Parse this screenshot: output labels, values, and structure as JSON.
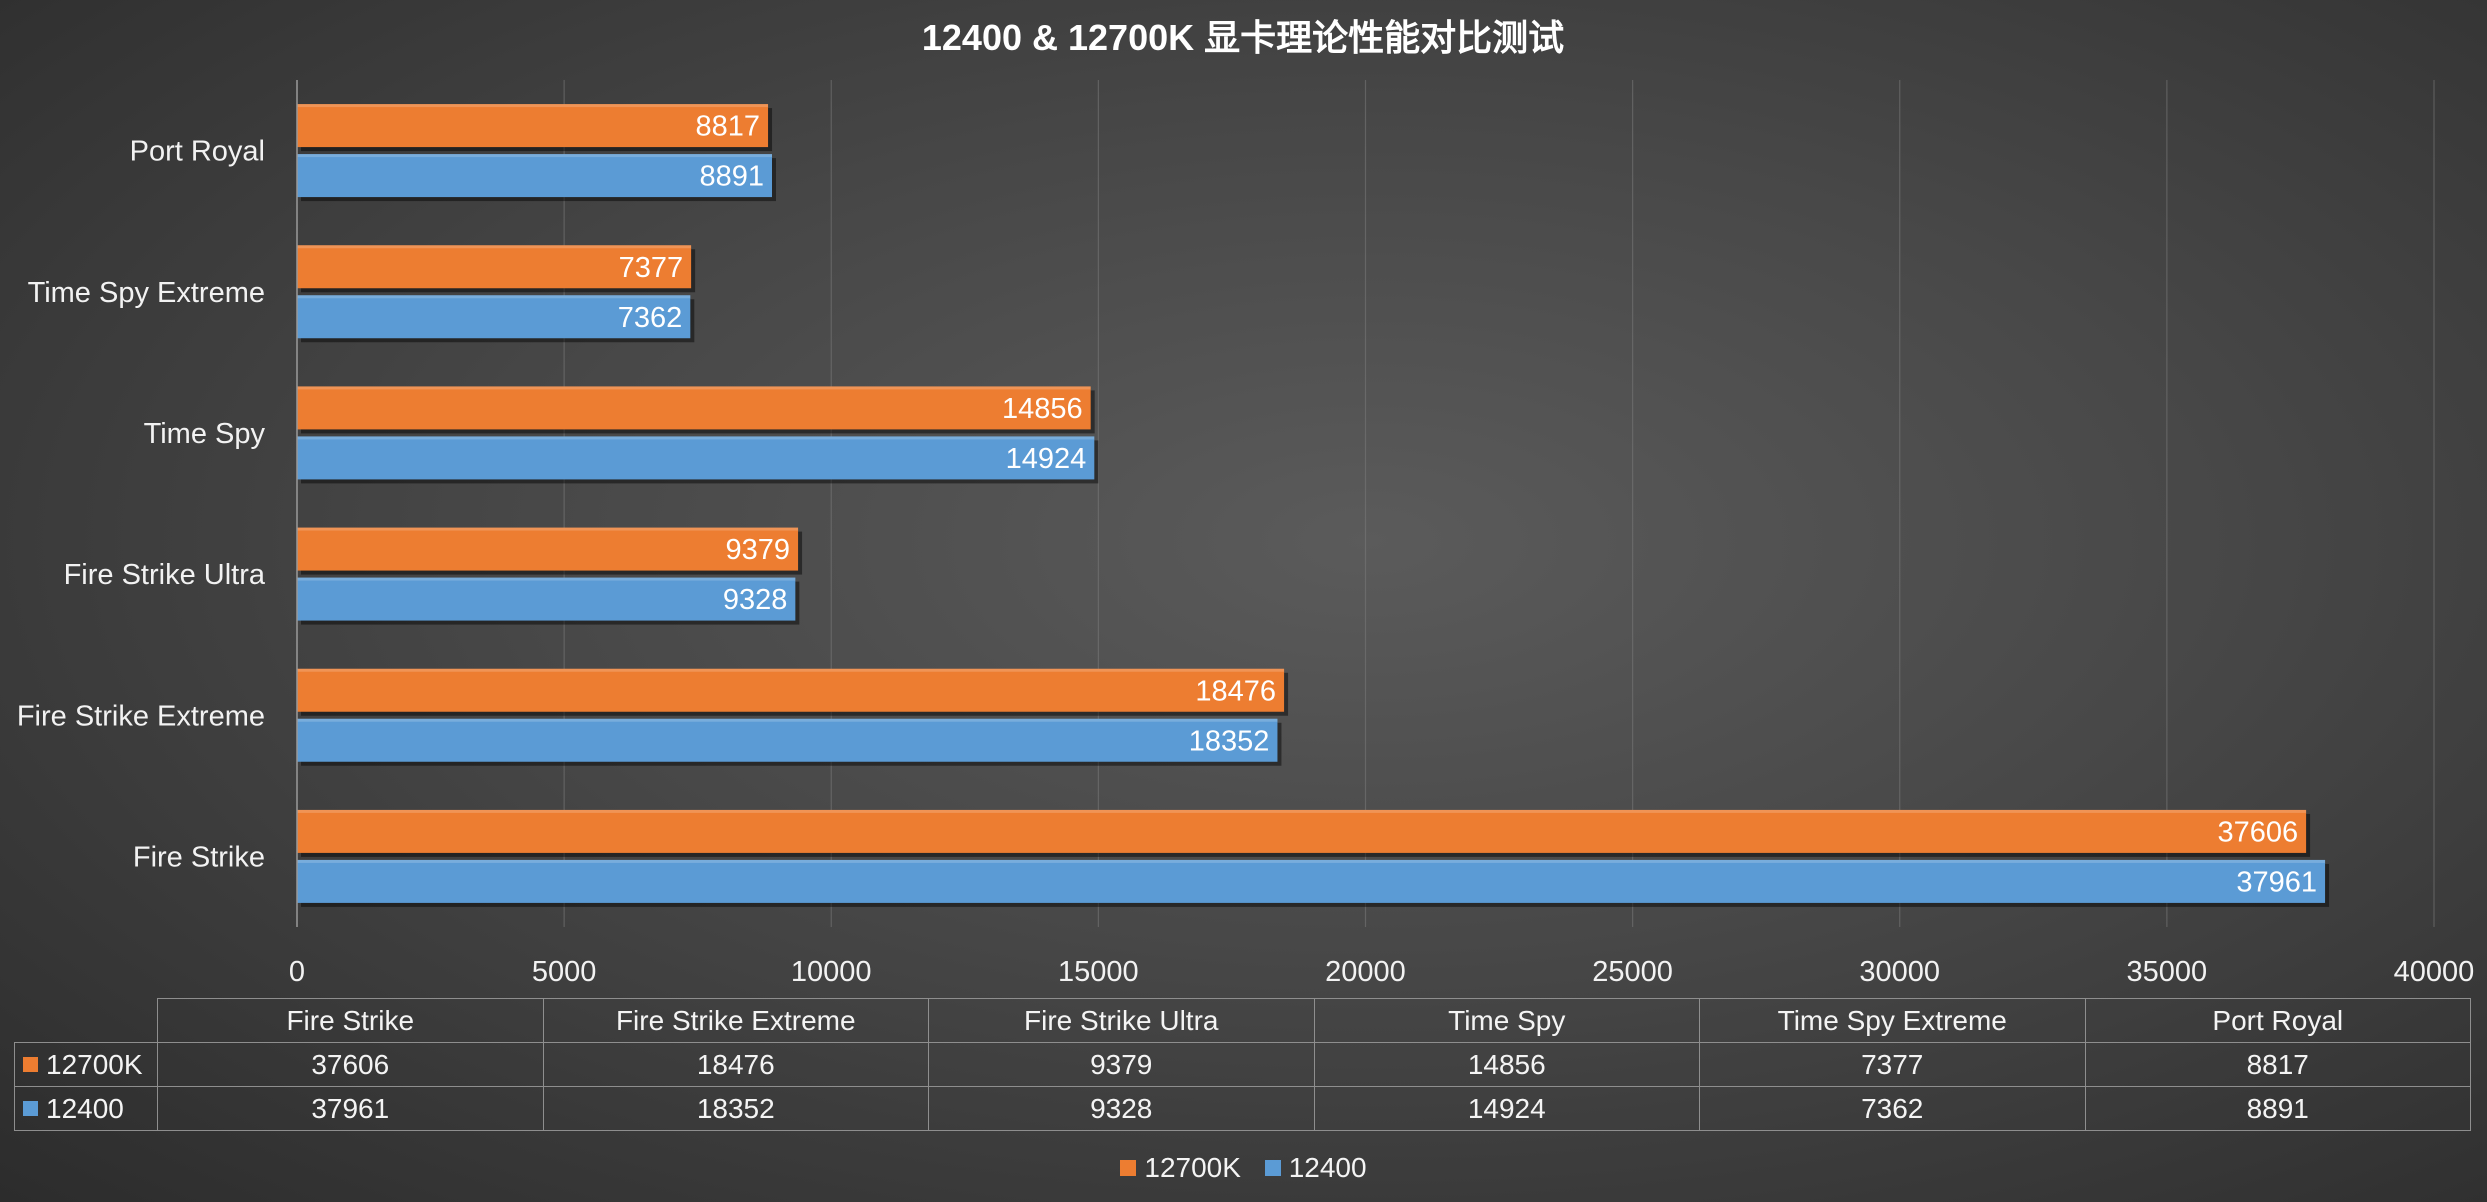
{
  "chart_data": {
    "type": "bar",
    "orientation": "horizontal",
    "title": "12400 & 12700K 显卡理论性能对比测试",
    "categories": [
      "Fire Strike",
      "Fire Strike Extreme",
      "Fire Strike Ultra",
      "Time Spy",
      "Time Spy Extreme",
      "Port Royal"
    ],
    "series": [
      {
        "name": "12700K",
        "color": "#ed7d31",
        "values": [
          37606,
          18476,
          9379,
          14856,
          7377,
          8817
        ]
      },
      {
        "name": "12400",
        "color": "#5b9bd5",
        "values": [
          37961,
          18352,
          9328,
          14924,
          7362,
          8891
        ]
      }
    ],
    "xlim": [
      0,
      40000
    ],
    "xticks": [
      0,
      5000,
      10000,
      15000,
      20000,
      25000,
      30000,
      35000,
      40000
    ],
    "xlabel": "",
    "ylabel": "",
    "grid": true,
    "legend_position": "bottom",
    "data_labels": true,
    "data_table": true
  }
}
